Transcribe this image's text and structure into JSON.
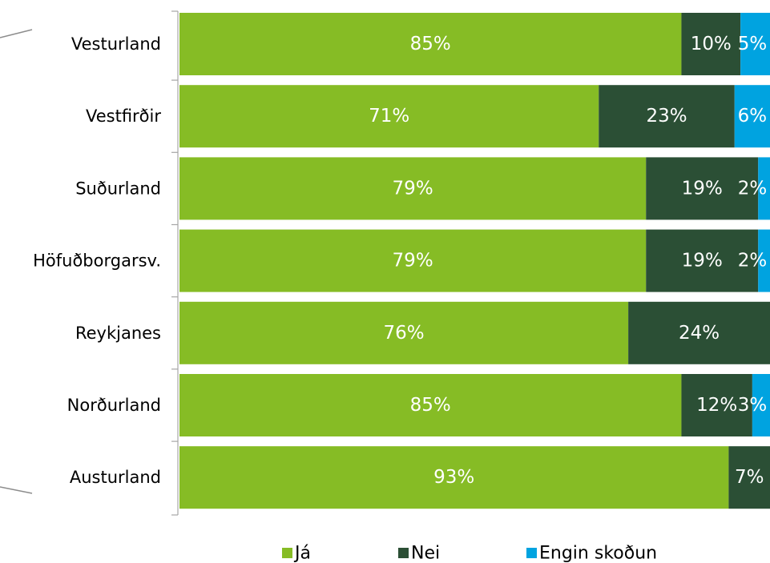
{
  "chart_data": {
    "type": "bar",
    "orientation": "horizontal",
    "stacked": "percent",
    "categories": [
      "Vesturland",
      "Vestfirðir",
      "Suðurland",
      "Höfuðborgarsv.",
      "Reykjanes",
      "Norðurland",
      "Austurland"
    ],
    "series": [
      {
        "name": "Já",
        "color": "#86bc25",
        "values": [
          85,
          71,
          79,
          79,
          76,
          85,
          93
        ],
        "labels": [
          "85%",
          "71%",
          "79%",
          "79%",
          "76%",
          "85%",
          "93%"
        ]
      },
      {
        "name": "Nei",
        "color": "#2b4f35",
        "values": [
          10,
          23,
          19,
          19,
          24,
          12,
          7
        ],
        "labels": [
          "10%",
          "23%",
          "19%",
          "19%",
          "24%",
          "12%",
          "7%"
        ]
      },
      {
        "name": "Engin skoðun",
        "color": "#00a3e0",
        "values": [
          5,
          6,
          2,
          2,
          0,
          3,
          0
        ],
        "labels": [
          "5%",
          "6%",
          "2%",
          "2%",
          "",
          "3%",
          ""
        ]
      }
    ],
    "xlim": [
      0,
      100
    ],
    "grid": false,
    "legend_position": "bottom"
  }
}
